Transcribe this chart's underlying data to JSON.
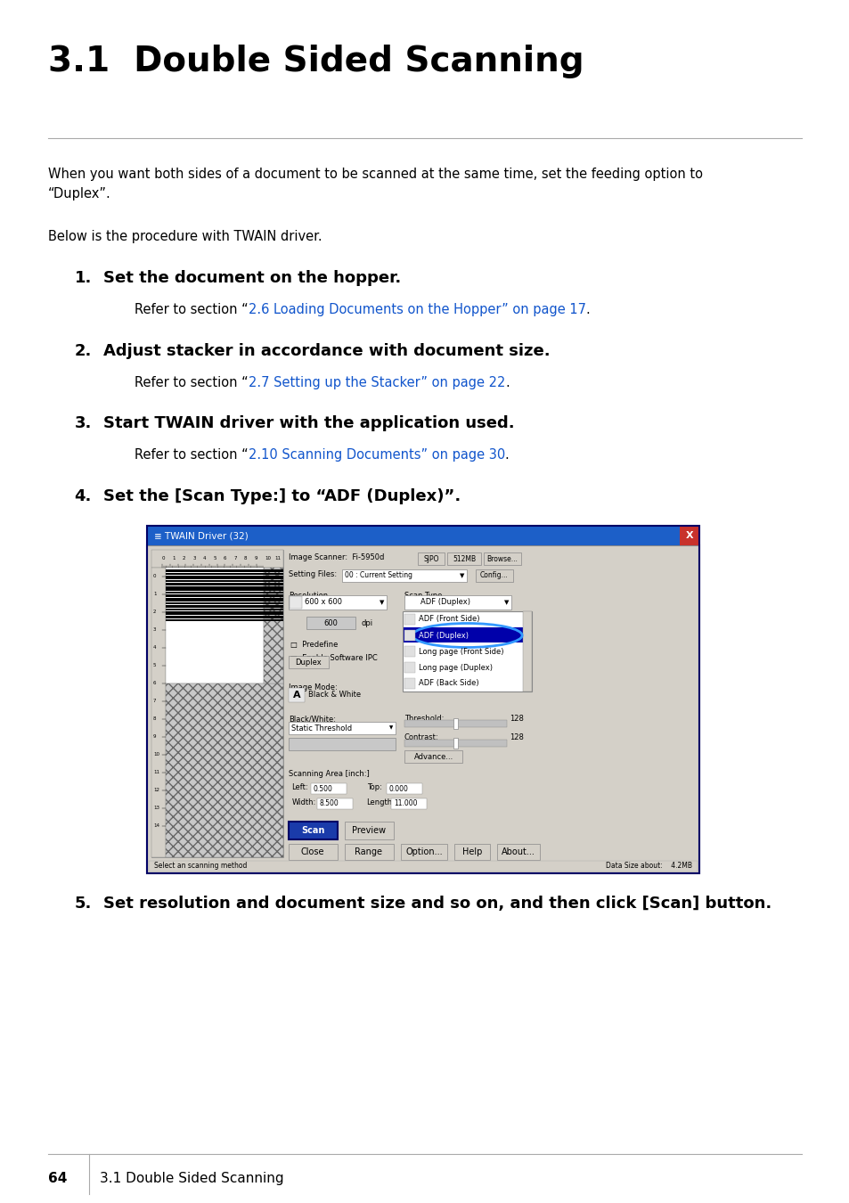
{
  "title": "3.1  Double Sided Scanning",
  "title_fontsize": 28,
  "bg_color": "#ffffff",
  "text_color": "#000000",
  "link_color": "#1155CC",
  "line_color": "#aaaaaa",
  "footer_page": "64",
  "footer_section": "3.1 Double Sided Scanning"
}
